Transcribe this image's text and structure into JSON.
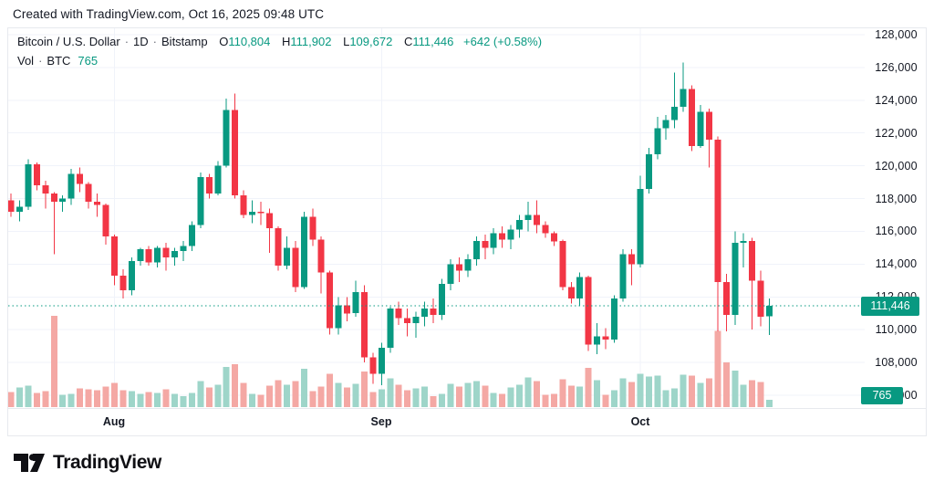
{
  "attribution": "Created with TradingView.com, Oct 16, 2025 09:48 UTC",
  "legend": {
    "title": "Bitcoin / U.S. Dollar",
    "separator": "·",
    "interval": "1D",
    "exchange": "Bitstamp",
    "ohlc": {
      "o_key": "O",
      "o": "110,804",
      "h_key": "H",
      "h": "111,902",
      "l_key": "L",
      "l": "109,672",
      "c_key": "C",
      "c": "111,446",
      "change": "+642 (+0.58%)"
    },
    "volume": {
      "label": "Vol",
      "sep": "·",
      "unit": "BTC",
      "value": "765"
    }
  },
  "price_axis": {
    "ticks": [
      {
        "label": "128,000",
        "value": 128000
      },
      {
        "label": "126,000",
        "value": 126000
      },
      {
        "label": "124,000",
        "value": 124000
      },
      {
        "label": "122,000",
        "value": 122000
      },
      {
        "label": "120,000",
        "value": 120000
      },
      {
        "label": "118,000",
        "value": 118000
      },
      {
        "label": "116,000",
        "value": 116000
      },
      {
        "label": "114,000",
        "value": 114000
      },
      {
        "label": "112,000",
        "value": 112000
      },
      {
        "label": "110,000",
        "value": 110000
      },
      {
        "label": "108,000",
        "value": 108000
      },
      {
        "label": "106,000",
        "value": 106000
      }
    ],
    "last_price_label": "111,446",
    "last_volume_label": "765"
  },
  "time_axis": {
    "labels": [
      {
        "text": "Aug",
        "index": 12
      },
      {
        "text": "Sep",
        "index": 43
      },
      {
        "text": "Oct",
        "index": 73
      }
    ]
  },
  "logo": {
    "brand": "TradingView"
  },
  "colors": {
    "up": "#089981",
    "down": "#f23645",
    "vol_up": "#9ed5c9",
    "vol_down": "#f4a8a4",
    "accent": "#089981",
    "text": "#131722",
    "grid": "#f0f3fa",
    "axis_border": "#e7e9ee"
  },
  "chart_data": {
    "type": "candlestick",
    "volume_overlay": "histogram",
    "symbol": "Bitcoin / U.S. Dollar",
    "exchange": "Bitstamp",
    "interval": "1D",
    "last_price": 111446,
    "last_volume_btc": 765,
    "y_axis": {
      "min": 106000,
      "max": 128000,
      "step": 2000
    },
    "x_axis": {
      "months": [
        "Aug",
        "Sep",
        "Oct"
      ]
    },
    "legend_position": "top-left",
    "grid": true,
    "columns": [
      "date",
      "open",
      "high",
      "low",
      "close",
      "volume_btc"
    ],
    "candles": [
      [
        "Jul 20",
        117900,
        118300,
        116900,
        117200,
        1600
      ],
      [
        "Jul 21",
        117200,
        117900,
        116600,
        117500,
        2100
      ],
      [
        "Jul 22",
        117500,
        120400,
        117300,
        120100,
        2300
      ],
      [
        "Jul 23",
        120100,
        120200,
        118500,
        118800,
        1500
      ],
      [
        "Jul 24",
        118800,
        119100,
        117400,
        118300,
        1700
      ],
      [
        "Jul 25",
        118300,
        118400,
        114600,
        117800,
        9800
      ],
      [
        "Jul 26",
        117800,
        118200,
        117200,
        118000,
        1300
      ],
      [
        "Jul 27",
        118000,
        119800,
        117600,
        119500,
        1400
      ],
      [
        "Jul 28",
        119500,
        119900,
        118400,
        118900,
        2000
      ],
      [
        "Jul 29",
        118900,
        119000,
        117400,
        117800,
        1900
      ],
      [
        "Jul 30",
        117800,
        118300,
        116900,
        117600,
        1800
      ],
      [
        "Jul 31",
        117600,
        117700,
        115200,
        115700,
        2200
      ],
      [
        "Aug 1",
        115700,
        115800,
        112700,
        113300,
        2600
      ],
      [
        "Aug 2",
        113300,
        113700,
        111900,
        112400,
        1800
      ],
      [
        "Aug 3",
        112400,
        114400,
        112100,
        114200,
        1700
      ],
      [
        "Aug 4",
        114200,
        115000,
        113900,
        114900,
        1400
      ],
      [
        "Aug 5",
        114900,
        115100,
        113900,
        114100,
        1600
      ],
      [
        "Aug 6",
        114100,
        115100,
        113800,
        115000,
        1500
      ],
      [
        "Aug 7",
        115000,
        115300,
        113600,
        114400,
        1900
      ],
      [
        "Aug 8",
        114400,
        115000,
        113900,
        114800,
        1400
      ],
      [
        "Aug 9",
        114800,
        115400,
        114200,
        115100,
        1200
      ],
      [
        "Aug 10",
        115100,
        116600,
        114800,
        116400,
        1500
      ],
      [
        "Aug 11",
        116400,
        119600,
        116200,
        119300,
        2800
      ],
      [
        "Aug 12",
        119300,
        119500,
        118000,
        118300,
        2100
      ],
      [
        "Aug 13",
        118300,
        120300,
        118200,
        120000,
        2400
      ],
      [
        "Aug 14",
        120000,
        124100,
        119900,
        123400,
        4300
      ],
      [
        "Aug 15",
        123400,
        124400,
        118000,
        118200,
        4600
      ],
      [
        "Aug 16",
        118200,
        118500,
        116800,
        117000,
        2600
      ],
      [
        "Aug 17",
        117000,
        117900,
        116500,
        117200,
        1400
      ],
      [
        "Aug 18",
        117200,
        117800,
        116400,
        117100,
        1300
      ],
      [
        "Aug 19",
        117100,
        117400,
        114700,
        116200,
        2300
      ],
      [
        "Aug 20",
        116200,
        116300,
        113600,
        113900,
        2900
      ],
      [
        "Aug 21",
        113900,
        115700,
        113700,
        115000,
        2400
      ],
      [
        "Aug 22",
        115000,
        115400,
        112300,
        112600,
        2800
      ],
      [
        "Aug 23",
        112600,
        117200,
        112500,
        116900,
        4100
      ],
      [
        "Aug 24",
        116900,
        117400,
        115100,
        115500,
        1700
      ],
      [
        "Aug 25",
        115500,
        115700,
        112200,
        113500,
        2200
      ],
      [
        "Aug 26",
        113500,
        113600,
        109700,
        110100,
        3600
      ],
      [
        "Aug 27",
        110100,
        112000,
        109700,
        111500,
        2600
      ],
      [
        "Aug 28",
        111500,
        112000,
        110500,
        111000,
        2100
      ],
      [
        "Aug 29",
        111000,
        113000,
        110800,
        112300,
        2500
      ],
      [
        "Aug 30",
        112300,
        112700,
        108000,
        108300,
        3800
      ],
      [
        "Aug 31",
        108300,
        108600,
        106700,
        107300,
        1600
      ],
      [
        "Sep 1",
        107300,
        109200,
        106600,
        108900,
        1900
      ],
      [
        "Sep 2",
        108900,
        111400,
        108600,
        111300,
        3100
      ],
      [
        "Sep 3",
        111300,
        111700,
        110300,
        110700,
        2400
      ],
      [
        "Sep 4",
        110700,
        111300,
        109600,
        110400,
        1800
      ],
      [
        "Sep 5",
        110400,
        111100,
        109500,
        110800,
        2000
      ],
      [
        "Sep 6",
        110800,
        111700,
        110200,
        111300,
        2200
      ],
      [
        "Sep 7",
        111300,
        111900,
        110400,
        110900,
        1200
      ],
      [
        "Sep 8",
        110900,
        113100,
        110600,
        112800,
        1400
      ],
      [
        "Sep 9",
        112800,
        114300,
        112400,
        114000,
        2500
      ],
      [
        "Sep 10",
        114000,
        114400,
        112900,
        113600,
        2200
      ],
      [
        "Sep 11",
        113600,
        114600,
        113200,
        114300,
        2600
      ],
      [
        "Sep 12",
        114300,
        115700,
        113900,
        115400,
        2800
      ],
      [
        "Sep 13",
        115400,
        115800,
        114300,
        115000,
        2300
      ],
      [
        "Sep 14",
        115000,
        116200,
        114600,
        115900,
        1500
      ],
      [
        "Sep 15",
        115900,
        116300,
        115000,
        115500,
        1400
      ],
      [
        "Sep 16",
        115500,
        116400,
        114900,
        116100,
        2100
      ],
      [
        "Sep 17",
        116100,
        117000,
        115600,
        116700,
        2400
      ],
      [
        "Sep 18",
        116700,
        117800,
        116000,
        117000,
        3200
      ],
      [
        "Sep 19",
        117000,
        117900,
        115900,
        116400,
        2800
      ],
      [
        "Sep 20",
        116400,
        116600,
        115600,
        115900,
        1300
      ],
      [
        "Sep 21",
        115900,
        116000,
        115100,
        115400,
        1400
      ],
      [
        "Sep 22",
        115400,
        115500,
        112400,
        112600,
        3000
      ],
      [
        "Sep 23",
        112600,
        112900,
        111600,
        111900,
        2300
      ],
      [
        "Sep 24",
        111900,
        113500,
        111500,
        113200,
        2200
      ],
      [
        "Sep 25",
        113200,
        113300,
        108700,
        109100,
        4200
      ],
      [
        "Sep 26",
        109100,
        110400,
        108500,
        109600,
        2900
      ],
      [
        "Sep 27",
        109600,
        110100,
        108800,
        109400,
        1300
      ],
      [
        "Sep 28",
        109400,
        112100,
        109200,
        111900,
        1800
      ],
      [
        "Sep 29",
        111900,
        114900,
        111700,
        114600,
        3100
      ],
      [
        "Sep 30",
        114600,
        114900,
        112700,
        114000,
        2700
      ],
      [
        "Oct 1",
        114000,
        119400,
        113800,
        118600,
        3600
      ],
      [
        "Oct 2",
        118600,
        121100,
        118300,
        120700,
        3300
      ],
      [
        "Oct 3",
        120700,
        123000,
        120400,
        122300,
        3400
      ],
      [
        "Oct 4",
        122300,
        123100,
        121600,
        122800,
        1800
      ],
      [
        "Oct 5",
        122800,
        125700,
        122300,
        123600,
        2000
      ],
      [
        "Oct 6",
        123600,
        126300,
        123300,
        124700,
        3500
      ],
      [
        "Oct 7",
        124700,
        124900,
        120900,
        121200,
        3400
      ],
      [
        "Oct 8",
        121200,
        123700,
        121100,
        123300,
        2600
      ],
      [
        "Oct 9",
        123300,
        123500,
        119900,
        121600,
        3100
      ],
      [
        "Oct 10",
        121600,
        121800,
        109900,
        112900,
        8200
      ],
      [
        "Oct 11",
        112900,
        113400,
        109900,
        110900,
        4800
      ],
      [
        "Oct 12",
        110900,
        116000,
        110300,
        115300,
        3900
      ],
      [
        "Oct 13",
        115300,
        115900,
        113800,
        115400,
        2400
      ],
      [
        "Oct 14",
        115400,
        115600,
        110000,
        113000,
        2900
      ],
      [
        "Oct 15",
        113000,
        113600,
        110200,
        110800,
        2700
      ],
      [
        "Oct 16",
        110804,
        111902,
        109672,
        111446,
        765
      ]
    ]
  }
}
